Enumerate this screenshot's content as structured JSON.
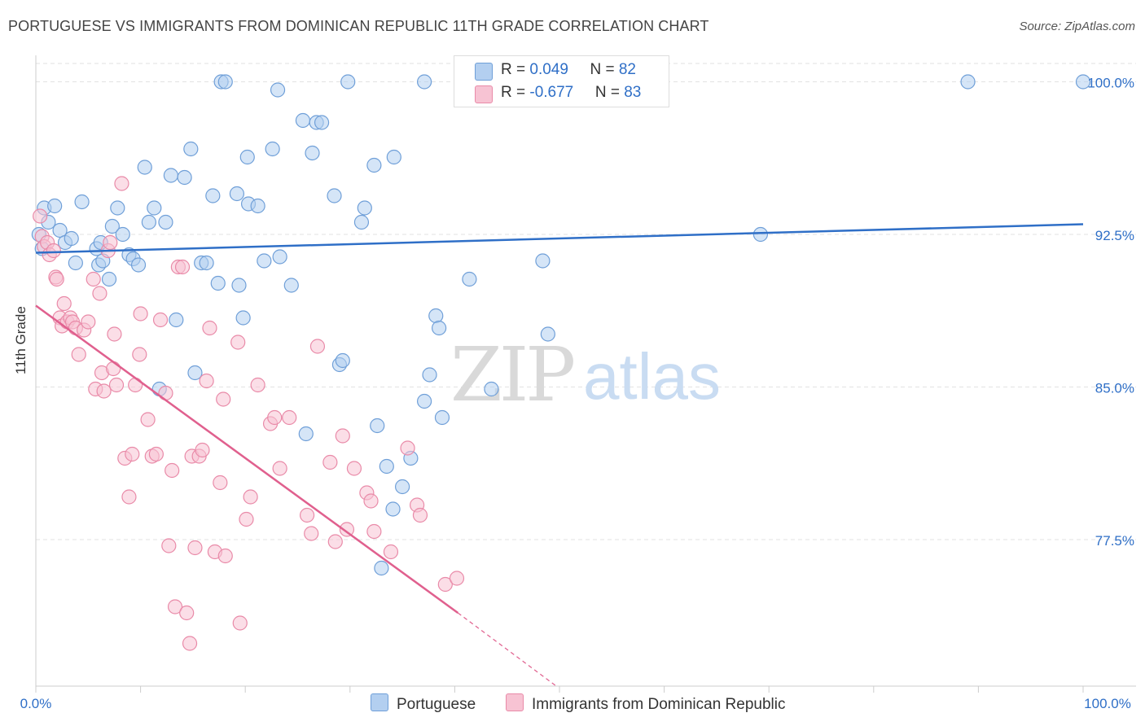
{
  "header": {
    "title": "PORTUGUESE VS IMMIGRANTS FROM DOMINICAN REPUBLIC 11TH GRADE CORRELATION CHART",
    "source": "Source: ZipAtlas.com"
  },
  "watermark": "ZIPatlas",
  "colors": {
    "blue_fill": "#b3cff0",
    "blue_stroke": "#6f9fd8",
    "blue_line": "#2f6fc7",
    "pink_fill": "#f7c3d3",
    "pink_stroke": "#e98aa8",
    "pink_line": "#e0608e",
    "axis_label": "#2f6fc7"
  },
  "legend": {
    "row1": {
      "r_label": "R = ",
      "r_value": "0.049",
      "n_label": "N = ",
      "n_value": "82"
    },
    "row2": {
      "r_label": "R = ",
      "r_value": "-0.677",
      "n_label": "N = ",
      "n_value": "83"
    }
  },
  "bottom_legend": {
    "series1": "Portuguese",
    "series2": "Immigrants from Dominican Republic"
  },
  "chart_data": {
    "type": "scatter",
    "title": "PORTUGUESE VS IMMIGRANTS FROM DOMINICAN REPUBLIC 11TH GRADE CORRELATION CHART",
    "xlabel": "",
    "ylabel": "11th Grade",
    "xlim": [
      0,
      100
    ],
    "ylim": [
      70.3,
      101.3
    ],
    "x_tick_labels": [
      "0.0%",
      "100.0%"
    ],
    "y_ticks": [
      77.5,
      85.0,
      92.5,
      100.0
    ],
    "y_tick_labels": [
      "77.5%",
      "85.0%",
      "92.5%",
      "100.0%"
    ],
    "grid": true,
    "series": [
      {
        "name": "Portuguese",
        "R": 0.049,
        "N": 82,
        "trend": {
          "x0": 0,
          "y0": 91.6,
          "x1": 100,
          "y1": 93.0
        },
        "points": [
          [
            0.3,
            92.5
          ],
          [
            0.6,
            91.8
          ],
          [
            0.8,
            93.8
          ],
          [
            1.2,
            93.1
          ],
          [
            1.8,
            93.9
          ],
          [
            2.3,
            92.7
          ],
          [
            2.8,
            92.1
          ],
          [
            3.4,
            92.3
          ],
          [
            3.8,
            91.1
          ],
          [
            4.4,
            94.1
          ],
          [
            5.8,
            91.8
          ],
          [
            6.0,
            91.0
          ],
          [
            6.2,
            92.1
          ],
          [
            6.4,
            91.2
          ],
          [
            7.0,
            90.3
          ],
          [
            7.3,
            92.9
          ],
          [
            7.8,
            93.8
          ],
          [
            8.3,
            92.5
          ],
          [
            8.9,
            91.5
          ],
          [
            9.3,
            91.3
          ],
          [
            9.8,
            91.0
          ],
          [
            10.4,
            95.8
          ],
          [
            10.8,
            93.1
          ],
          [
            11.3,
            93.8
          ],
          [
            11.8,
            84.9
          ],
          [
            12.4,
            93.1
          ],
          [
            12.9,
            95.4
          ],
          [
            13.4,
            88.3
          ],
          [
            14.2,
            95.3
          ],
          [
            14.8,
            96.7
          ],
          [
            15.2,
            85.7
          ],
          [
            15.8,
            91.1
          ],
          [
            16.3,
            91.1
          ],
          [
            16.9,
            94.4
          ],
          [
            17.4,
            90.1
          ],
          [
            17.7,
            100.0
          ],
          [
            18.1,
            100.0
          ],
          [
            19.2,
            94.5
          ],
          [
            19.4,
            90.0
          ],
          [
            19.8,
            88.4
          ],
          [
            20.3,
            94.0
          ],
          [
            20.2,
            96.3
          ],
          [
            21.2,
            93.9
          ],
          [
            21.8,
            91.2
          ],
          [
            22.6,
            96.7
          ],
          [
            23.3,
            91.4
          ],
          [
            23.1,
            99.6
          ],
          [
            24.4,
            90.0
          ],
          [
            25.5,
            98.1
          ],
          [
            25.8,
            82.7
          ],
          [
            26.4,
            96.5
          ],
          [
            26.8,
            98.0
          ],
          [
            27.3,
            98.0
          ],
          [
            28.5,
            94.4
          ],
          [
            29.0,
            86.1
          ],
          [
            29.3,
            86.3
          ],
          [
            29.8,
            100.0
          ],
          [
            31.1,
            93.1
          ],
          [
            31.4,
            93.8
          ],
          [
            32.3,
            95.9
          ],
          [
            32.6,
            83.1
          ],
          [
            33.0,
            76.1
          ],
          [
            33.5,
            81.1
          ],
          [
            34.1,
            79.0
          ],
          [
            34.2,
            96.3
          ],
          [
            35.0,
            80.1
          ],
          [
            35.8,
            81.5
          ],
          [
            37.1,
            84.3
          ],
          [
            37.1,
            100.0
          ],
          [
            37.6,
            85.6
          ],
          [
            38.2,
            88.5
          ],
          [
            38.5,
            87.9
          ],
          [
            38.8,
            83.5
          ],
          [
            41.4,
            90.3
          ],
          [
            43.5,
            84.9
          ],
          [
            48.4,
            91.2
          ],
          [
            48.9,
            87.6
          ],
          [
            56.9,
            100.0
          ],
          [
            69.2,
            92.5
          ],
          [
            89.0,
            100.0
          ],
          [
            100.0,
            100.0
          ]
        ]
      },
      {
        "name": "Immigrants from Dominican Republic",
        "R": -0.677,
        "N": 83,
        "trend": {
          "x0": 0,
          "y0": 89.0,
          "x1": 40.3,
          "y1": 73.9
        },
        "trend_dashed": {
          "x0": 40.3,
          "y0": 73.9,
          "x1": 49.7,
          "y1": 70.3
        },
        "points": [
          [
            0.4,
            93.4
          ],
          [
            0.6,
            92.4
          ],
          [
            0.8,
            91.9
          ],
          [
            1.1,
            92.1
          ],
          [
            1.3,
            91.5
          ],
          [
            1.7,
            91.7
          ],
          [
            1.9,
            90.4
          ],
          [
            2.0,
            90.3
          ],
          [
            2.3,
            88.4
          ],
          [
            2.5,
            88.0
          ],
          [
            2.7,
            89.1
          ],
          [
            3.0,
            88.2
          ],
          [
            3.3,
            88.4
          ],
          [
            3.5,
            88.2
          ],
          [
            3.8,
            87.9
          ],
          [
            4.1,
            86.6
          ],
          [
            4.6,
            87.8
          ],
          [
            5.0,
            88.2
          ],
          [
            5.5,
            90.3
          ],
          [
            5.7,
            84.9
          ],
          [
            6.1,
            89.6
          ],
          [
            6.3,
            85.7
          ],
          [
            6.5,
            84.8
          ],
          [
            6.9,
            91.7
          ],
          [
            7.1,
            92.1
          ],
          [
            7.4,
            85.9
          ],
          [
            7.7,
            85.1
          ],
          [
            7.5,
            87.6
          ],
          [
            8.2,
            95.0
          ],
          [
            8.5,
            81.5
          ],
          [
            8.9,
            79.6
          ],
          [
            9.2,
            81.7
          ],
          [
            9.5,
            85.1
          ],
          [
            9.9,
            86.6
          ],
          [
            10.0,
            88.6
          ],
          [
            10.7,
            83.4
          ],
          [
            11.1,
            81.6
          ],
          [
            11.5,
            81.7
          ],
          [
            11.9,
            88.3
          ],
          [
            12.4,
            84.7
          ],
          [
            12.7,
            77.2
          ],
          [
            13.0,
            80.9
          ],
          [
            13.3,
            74.2
          ],
          [
            13.6,
            90.9
          ],
          [
            14.0,
            90.9
          ],
          [
            14.4,
            73.9
          ],
          [
            14.7,
            72.4
          ],
          [
            14.9,
            81.6
          ],
          [
            15.2,
            77.1
          ],
          [
            15.6,
            81.6
          ],
          [
            15.9,
            81.9
          ],
          [
            16.3,
            85.3
          ],
          [
            16.6,
            87.9
          ],
          [
            17.1,
            76.9
          ],
          [
            17.6,
            80.3
          ],
          [
            17.9,
            84.4
          ],
          [
            18.1,
            76.7
          ],
          [
            19.3,
            87.2
          ],
          [
            19.5,
            73.4
          ],
          [
            20.1,
            78.5
          ],
          [
            20.5,
            79.6
          ],
          [
            21.2,
            85.1
          ],
          [
            22.4,
            83.2
          ],
          [
            22.8,
            83.5
          ],
          [
            23.3,
            81.0
          ],
          [
            24.2,
            83.5
          ],
          [
            25.9,
            78.7
          ],
          [
            26.3,
            77.8
          ],
          [
            26.9,
            87.0
          ],
          [
            28.1,
            81.3
          ],
          [
            28.6,
            77.4
          ],
          [
            29.3,
            82.6
          ],
          [
            29.7,
            78.0
          ],
          [
            30.4,
            81.0
          ],
          [
            31.6,
            79.8
          ],
          [
            32.0,
            79.4
          ],
          [
            32.3,
            77.9
          ],
          [
            33.9,
            76.9
          ],
          [
            35.5,
            82.0
          ],
          [
            36.4,
            79.2
          ],
          [
            36.7,
            78.7
          ],
          [
            39.1,
            75.3
          ],
          [
            40.2,
            75.6
          ]
        ]
      }
    ]
  }
}
